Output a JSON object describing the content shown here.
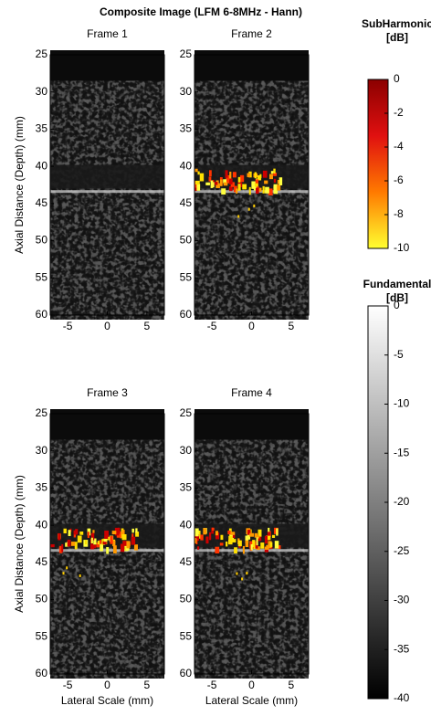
{
  "title": "Composite Image (LFM 6-8MHz - Hann)",
  "chart_data": [
    {
      "type": "image",
      "title": "Frame 1",
      "xlim": [
        -7.2,
        7.2
      ],
      "ylim": [
        25,
        60
      ],
      "xticks": [
        -5,
        0,
        5
      ],
      "yticks": [
        25,
        30,
        35,
        40,
        45,
        50,
        55,
        60
      ],
      "ylabel": "Axial Distance (Depth) (mm)",
      "subharmonic_overlay": false
    },
    {
      "type": "image",
      "title": "Frame 2",
      "xlim": [
        -7.2,
        7.2
      ],
      "ylim": [
        25,
        60
      ],
      "xticks": [
        -5,
        0,
        5
      ],
      "yticks": [
        25,
        30,
        35,
        40,
        45,
        50,
        55,
        60
      ],
      "subharmonic_overlay": true
    },
    {
      "type": "image",
      "title": "Frame 3",
      "xlim": [
        -7.2,
        7.2
      ],
      "ylim": [
        25,
        60
      ],
      "xticks": [
        -5,
        0,
        5
      ],
      "yticks": [
        25,
        30,
        35,
        40,
        45,
        50,
        55,
        60
      ],
      "ylabel": "Axial Distance (Depth) (mm)",
      "xlabel": "Lateral Scale (mm)",
      "subharmonic_overlay": true
    },
    {
      "type": "image",
      "title": "Frame 4",
      "xlim": [
        -7.2,
        7.2
      ],
      "ylim": [
        25,
        60
      ],
      "xticks": [
        -5,
        0,
        5
      ],
      "yticks": [
        25,
        30,
        35,
        40,
        45,
        50,
        55,
        60
      ],
      "xlabel": "Lateral Scale (mm)",
      "subharmonic_overlay": true
    }
  ],
  "colorbars": [
    {
      "title": "SubHarmonic",
      "unit": "[dB]",
      "lim": [
        -10,
        0
      ],
      "ticks": [
        0,
        -2,
        -4,
        -6,
        -8,
        -10
      ],
      "colors": [
        "#8b0000",
        "#e01010",
        "#ff7a00",
        "#ffff30"
      ]
    },
    {
      "title": "Fundamental",
      "unit": "[dB]",
      "lim": [
        -40,
        0
      ],
      "ticks": [
        0,
        -5,
        -10,
        -15,
        -20,
        -25,
        -30,
        -35,
        -40
      ],
      "colors": [
        "#ffffff",
        "#000000"
      ]
    }
  ]
}
